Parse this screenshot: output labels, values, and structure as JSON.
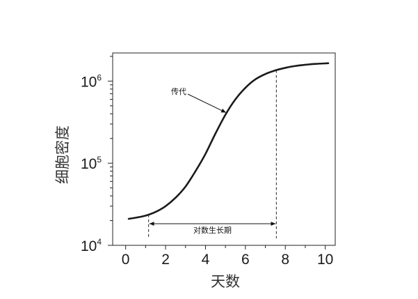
{
  "chart_data": {
    "type": "line",
    "xlabel": "天数",
    "ylabel": "细胞密度",
    "x_ticks": [
      0,
      2,
      4,
      6,
      8,
      10
    ],
    "y_ticks": [
      {
        "base": "10",
        "exp": "4",
        "value": 10000
      },
      {
        "base": "10",
        "exp": "5",
        "value": 100000
      },
      {
        "base": "10",
        "exp": "6",
        "value": 1000000
      }
    ],
    "xlim": [
      -0.65,
      10.5
    ],
    "ylim": [
      10000,
      2200000
    ],
    "y_scale": "log",
    "grid": false,
    "series": [
      {
        "x": [
          0.15,
          0.5,
          1.0,
          1.5,
          2.0,
          2.5,
          3.0,
          3.5,
          4.0,
          4.5,
          5.0,
          5.5,
          6.0,
          6.5,
          7.0,
          7.5,
          8.0,
          8.5,
          9.0,
          9.5,
          10.15
        ],
        "y": [
          21000,
          21700,
          23000,
          25500,
          30000,
          38000,
          52000,
          80000,
          130000,
          230000,
          390000,
          600000,
          830000,
          1050000,
          1220000,
          1350000,
          1450000,
          1530000,
          1580000,
          1620000,
          1650000
        ]
      }
    ],
    "annotations": {
      "passage_label": "传代",
      "passage_point": {
        "x": 5.1,
        "y": 390000
      },
      "log_phase_label": "对数生长期",
      "log_phase_range": [
        1.15,
        7.55
      ]
    }
  }
}
